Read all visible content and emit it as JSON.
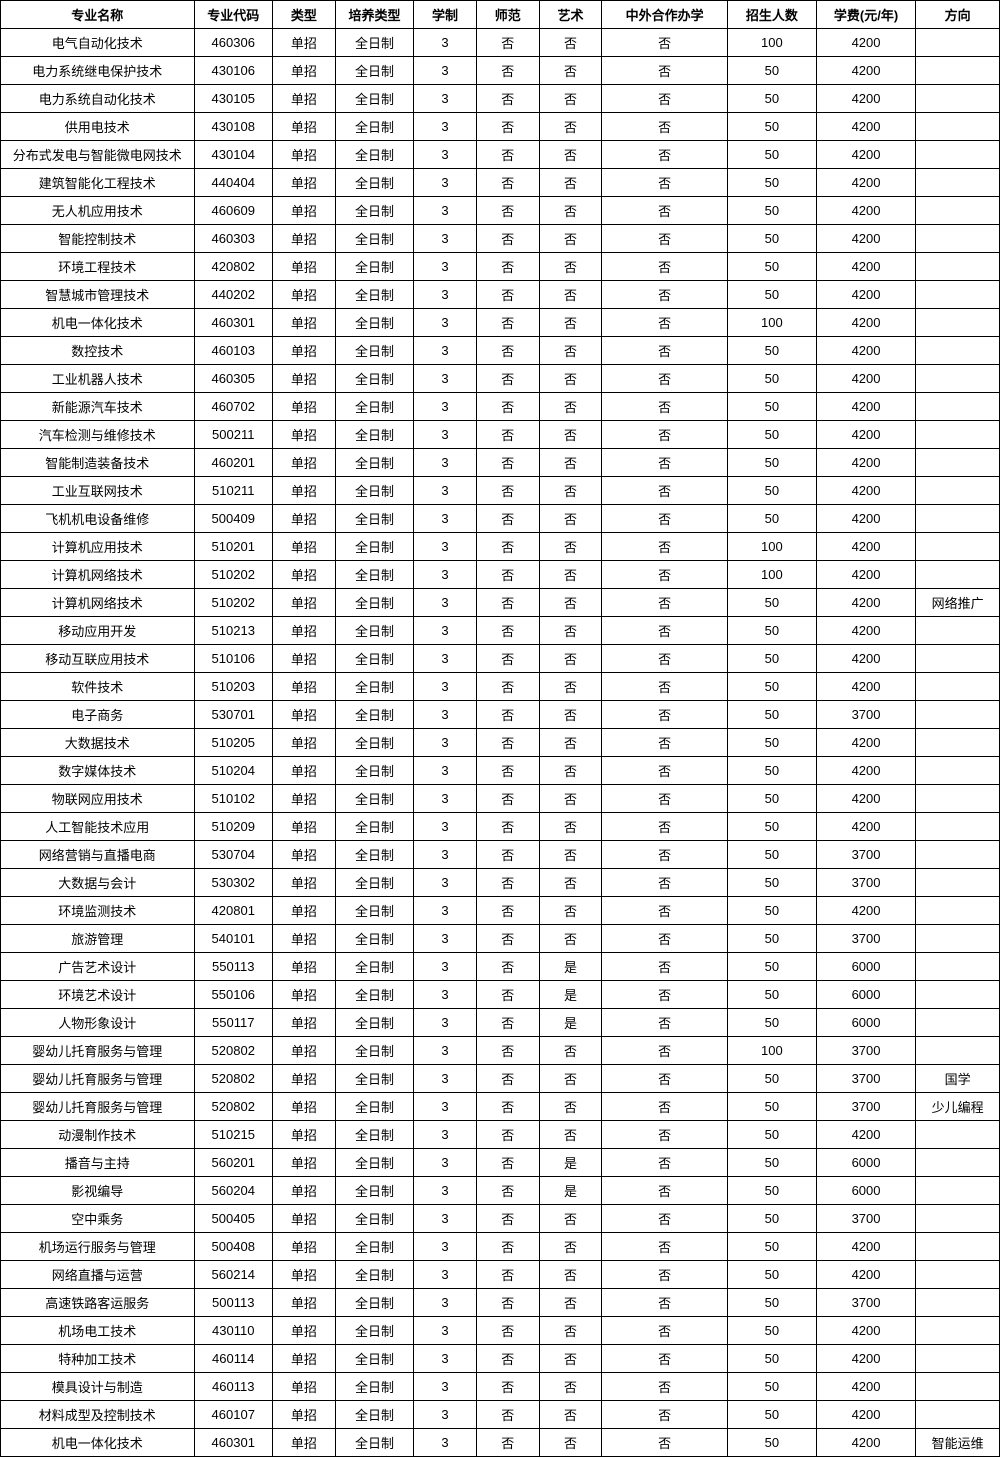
{
  "table": {
    "columns": [
      "专业名称",
      "专业代码",
      "类型",
      "培养类型",
      "学制",
      "师范",
      "艺术",
      "中外合作办学",
      "招生人数",
      "学费(元/年)",
      "方向"
    ],
    "col_classes": [
      "col-name",
      "col-code",
      "col-type",
      "col-cult",
      "col-dur",
      "col-normal",
      "col-art",
      "col-coop",
      "col-num",
      "col-fee",
      "col-dir"
    ],
    "rows": [
      [
        "电气自动化技术",
        "460306",
        "单招",
        "全日制",
        "3",
        "否",
        "否",
        "否",
        "100",
        "4200",
        ""
      ],
      [
        "电力系统继电保护技术",
        "430106",
        "单招",
        "全日制",
        "3",
        "否",
        "否",
        "否",
        "50",
        "4200",
        ""
      ],
      [
        "电力系统自动化技术",
        "430105",
        "单招",
        "全日制",
        "3",
        "否",
        "否",
        "否",
        "50",
        "4200",
        ""
      ],
      [
        "供用电技术",
        "430108",
        "单招",
        "全日制",
        "3",
        "否",
        "否",
        "否",
        "50",
        "4200",
        ""
      ],
      [
        "分布式发电与智能微电网技术",
        "430104",
        "单招",
        "全日制",
        "3",
        "否",
        "否",
        "否",
        "50",
        "4200",
        ""
      ],
      [
        "建筑智能化工程技术",
        "440404",
        "单招",
        "全日制",
        "3",
        "否",
        "否",
        "否",
        "50",
        "4200",
        ""
      ],
      [
        "无人机应用技术",
        "460609",
        "单招",
        "全日制",
        "3",
        "否",
        "否",
        "否",
        "50",
        "4200",
        ""
      ],
      [
        "智能控制技术",
        "460303",
        "单招",
        "全日制",
        "3",
        "否",
        "否",
        "否",
        "50",
        "4200",
        ""
      ],
      [
        "环境工程技术",
        "420802",
        "单招",
        "全日制",
        "3",
        "否",
        "否",
        "否",
        "50",
        "4200",
        ""
      ],
      [
        "智慧城市管理技术",
        "440202",
        "单招",
        "全日制",
        "3",
        "否",
        "否",
        "否",
        "50",
        "4200",
        ""
      ],
      [
        "机电一体化技术",
        "460301",
        "单招",
        "全日制",
        "3",
        "否",
        "否",
        "否",
        "100",
        "4200",
        ""
      ],
      [
        "数控技术",
        "460103",
        "单招",
        "全日制",
        "3",
        "否",
        "否",
        "否",
        "50",
        "4200",
        ""
      ],
      [
        "工业机器人技术",
        "460305",
        "单招",
        "全日制",
        "3",
        "否",
        "否",
        "否",
        "50",
        "4200",
        ""
      ],
      [
        "新能源汽车技术",
        "460702",
        "单招",
        "全日制",
        "3",
        "否",
        "否",
        "否",
        "50",
        "4200",
        ""
      ],
      [
        "汽车检测与维修技术",
        "500211",
        "单招",
        "全日制",
        "3",
        "否",
        "否",
        "否",
        "50",
        "4200",
        ""
      ],
      [
        "智能制造装备技术",
        "460201",
        "单招",
        "全日制",
        "3",
        "否",
        "否",
        "否",
        "50",
        "4200",
        ""
      ],
      [
        "工业互联网技术",
        "510211",
        "单招",
        "全日制",
        "3",
        "否",
        "否",
        "否",
        "50",
        "4200",
        ""
      ],
      [
        "飞机机电设备维修",
        "500409",
        "单招",
        "全日制",
        "3",
        "否",
        "否",
        "否",
        "50",
        "4200",
        ""
      ],
      [
        "计算机应用技术",
        "510201",
        "单招",
        "全日制",
        "3",
        "否",
        "否",
        "否",
        "100",
        "4200",
        ""
      ],
      [
        "计算机网络技术",
        "510202",
        "单招",
        "全日制",
        "3",
        "否",
        "否",
        "否",
        "100",
        "4200",
        ""
      ],
      [
        "计算机网络技术",
        "510202",
        "单招",
        "全日制",
        "3",
        "否",
        "否",
        "否",
        "50",
        "4200",
        "网络推广"
      ],
      [
        "移动应用开发",
        "510213",
        "单招",
        "全日制",
        "3",
        "否",
        "否",
        "否",
        "50",
        "4200",
        ""
      ],
      [
        "移动互联应用技术",
        "510106",
        "单招",
        "全日制",
        "3",
        "否",
        "否",
        "否",
        "50",
        "4200",
        ""
      ],
      [
        "软件技术",
        "510203",
        "单招",
        "全日制",
        "3",
        "否",
        "否",
        "否",
        "50",
        "4200",
        ""
      ],
      [
        "电子商务",
        "530701",
        "单招",
        "全日制",
        "3",
        "否",
        "否",
        "否",
        "50",
        "3700",
        ""
      ],
      [
        "大数据技术",
        "510205",
        "单招",
        "全日制",
        "3",
        "否",
        "否",
        "否",
        "50",
        "4200",
        ""
      ],
      [
        "数字媒体技术",
        "510204",
        "单招",
        "全日制",
        "3",
        "否",
        "否",
        "否",
        "50",
        "4200",
        ""
      ],
      [
        "物联网应用技术",
        "510102",
        "单招",
        "全日制",
        "3",
        "否",
        "否",
        "否",
        "50",
        "4200",
        ""
      ],
      [
        "人工智能技术应用",
        "510209",
        "单招",
        "全日制",
        "3",
        "否",
        "否",
        "否",
        "50",
        "4200",
        ""
      ],
      [
        "网络营销与直播电商",
        "530704",
        "单招",
        "全日制",
        "3",
        "否",
        "否",
        "否",
        "50",
        "3700",
        ""
      ],
      [
        "大数据与会计",
        "530302",
        "单招",
        "全日制",
        "3",
        "否",
        "否",
        "否",
        "50",
        "3700",
        ""
      ],
      [
        "环境监测技术",
        "420801",
        "单招",
        "全日制",
        "3",
        "否",
        "否",
        "否",
        "50",
        "4200",
        ""
      ],
      [
        "旅游管理",
        "540101",
        "单招",
        "全日制",
        "3",
        "否",
        "否",
        "否",
        "50",
        "3700",
        ""
      ],
      [
        "广告艺术设计",
        "550113",
        "单招",
        "全日制",
        "3",
        "否",
        "是",
        "否",
        "50",
        "6000",
        ""
      ],
      [
        "环境艺术设计",
        "550106",
        "单招",
        "全日制",
        "3",
        "否",
        "是",
        "否",
        "50",
        "6000",
        ""
      ],
      [
        "人物形象设计",
        "550117",
        "单招",
        "全日制",
        "3",
        "否",
        "是",
        "否",
        "50",
        "6000",
        ""
      ],
      [
        "婴幼儿托育服务与管理",
        "520802",
        "单招",
        "全日制",
        "3",
        "否",
        "否",
        "否",
        "100",
        "3700",
        ""
      ],
      [
        "婴幼儿托育服务与管理",
        "520802",
        "单招",
        "全日制",
        "3",
        "否",
        "否",
        "否",
        "50",
        "3700",
        "国学"
      ],
      [
        "婴幼儿托育服务与管理",
        "520802",
        "单招",
        "全日制",
        "3",
        "否",
        "否",
        "否",
        "50",
        "3700",
        "少儿编程"
      ],
      [
        "动漫制作技术",
        "510215",
        "单招",
        "全日制",
        "3",
        "否",
        "否",
        "否",
        "50",
        "4200",
        ""
      ],
      [
        "播音与主持",
        "560201",
        "单招",
        "全日制",
        "3",
        "否",
        "是",
        "否",
        "50",
        "6000",
        ""
      ],
      [
        "影视编导",
        "560204",
        "单招",
        "全日制",
        "3",
        "否",
        "是",
        "否",
        "50",
        "6000",
        ""
      ],
      [
        "空中乘务",
        "500405",
        "单招",
        "全日制",
        "3",
        "否",
        "否",
        "否",
        "50",
        "3700",
        ""
      ],
      [
        "机场运行服务与管理",
        "500408",
        "单招",
        "全日制",
        "3",
        "否",
        "否",
        "否",
        "50",
        "4200",
        ""
      ],
      [
        "网络直播与运营",
        "560214",
        "单招",
        "全日制",
        "3",
        "否",
        "否",
        "否",
        "50",
        "4200",
        ""
      ],
      [
        "高速铁路客运服务",
        "500113",
        "单招",
        "全日制",
        "3",
        "否",
        "否",
        "否",
        "50",
        "3700",
        ""
      ],
      [
        "机场电工技术",
        "430110",
        "单招",
        "全日制",
        "3",
        "否",
        "否",
        "否",
        "50",
        "4200",
        ""
      ],
      [
        "特种加工技术",
        "460114",
        "单招",
        "全日制",
        "3",
        "否",
        "否",
        "否",
        "50",
        "4200",
        ""
      ],
      [
        "模具设计与制造",
        "460113",
        "单招",
        "全日制",
        "3",
        "否",
        "否",
        "否",
        "50",
        "4200",
        ""
      ],
      [
        "材料成型及控制技术",
        "460107",
        "单招",
        "全日制",
        "3",
        "否",
        "否",
        "否",
        "50",
        "4200",
        ""
      ],
      [
        "机电一体化技术",
        "460301",
        "单招",
        "全日制",
        "3",
        "否",
        "否",
        "否",
        "50",
        "4200",
        "智能运维"
      ]
    ],
    "border_color": "#000000",
    "background_color": "#ffffff",
    "font_size": 13,
    "header_font_weight": "bold"
  }
}
